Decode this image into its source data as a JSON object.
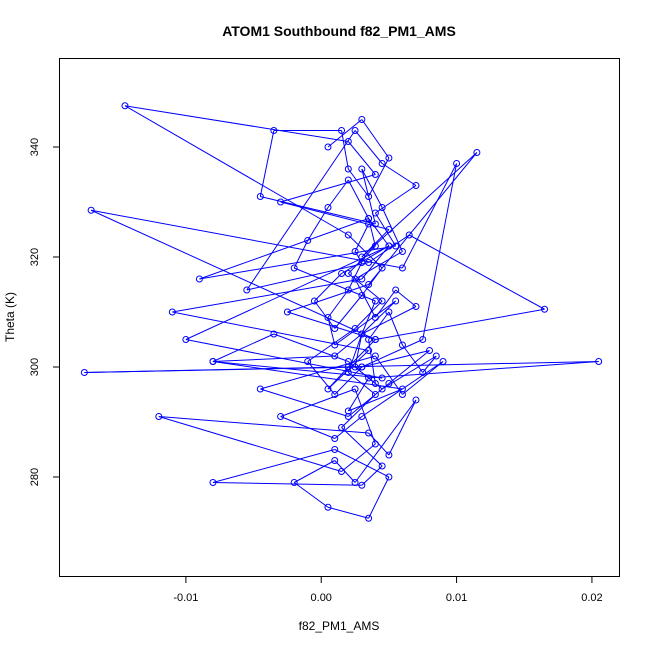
{
  "chart_data": {
    "type": "line",
    "title": "ATOM1 Southbound f82_PM1_AMS",
    "xlabel": "f82_PM1_AMS",
    "ylabel": "Theta (K)",
    "xlim": [
      -0.0193,
      0.022
    ],
    "ylim": [
      262,
      356
    ],
    "xticks": [
      -0.01,
      0.0,
      0.01,
      0.02
    ],
    "xtick_labels": [
      "-0.01",
      "0.00",
      "0.01",
      "0.02"
    ],
    "yticks": [
      280,
      300,
      320,
      340
    ],
    "ytick_labels": [
      "280",
      "300",
      "320",
      "340"
    ],
    "grid": false,
    "legend": "none",
    "line_color": "#0000ff",
    "marker": "open-circle",
    "series": [
      {
        "x": [
          0.0005,
          0.003,
          0.005,
          0.0035,
          0.002,
          0.0015,
          -0.0035,
          -0.0045,
          0.004,
          0.003,
          0.0045,
          0.006,
          0.0025,
          0.004,
          0.0055,
          0.007,
          0.003,
          0.001,
          -0.008,
          -0.0035,
          0.002,
          0.004,
          0.0035,
          0.005,
          0.006,
          0.0075,
          0.0085,
          0.0045,
          0.0025,
          0.003,
          0.004,
          -0.002,
          -0.001,
          0.0005,
          0.002,
          0.0035,
          0.005,
          0.0015,
          -0.0005,
          0.001,
          0.003,
          0.0045,
          0.002,
          -0.0145,
          0.002,
          0.004,
          -0.003,
          0.005,
          0.003,
          0.0115,
          0.0035,
          -0.0025,
          0.004,
          -0.017,
          0.006,
          0.01,
          0.0075,
          0.003,
          0.001,
          -0.001,
          0.0025,
          0.0045,
          0.002,
          0.004,
          0.0035,
          -0.009,
          0.0055,
          0.004,
          0.007,
          0.0045,
          0.0025,
          -0.0055,
          0.0035,
          0.0065,
          0.0165,
          0.004,
          0.002,
          0.0005,
          0.0035,
          -0.011,
          0.003,
          0.005,
          -0.01,
          0.0045,
          -0.008,
          0.006,
          0.002,
          0.0035,
          0.0205,
          -0.0175,
          0.003,
          0.008,
          0.005,
          0.002,
          -0.0045,
          0.004,
          0.006,
          0.009,
          0.003,
          0.001,
          -0.003,
          0.0025,
          0.004,
          0.0015,
          -0.012,
          0.0035,
          0.005,
          0.007,
          0.0025,
          0.001,
          -0.002,
          0.0005,
          0.0035,
          0.005,
          0.001,
          -0.008,
          0.003,
          0.0045,
          0.0015,
          0.004,
          0.002,
          0.003,
          0.0055,
          0.001,
          0.0005,
          0.002,
          0.003,
          0.0025,
          0.0035
        ],
        "y": [
          340.0,
          345.0,
          338.0,
          331.0,
          336.0,
          343.0,
          343.0,
          331.0,
          326.0,
          336.0,
          329.0,
          321.0,
          316.0,
          309.0,
          314.0,
          311.0,
          306.0,
          302.0,
          301.0,
          306.0,
          301.0,
          297.0,
          305.0,
          310.0,
          304.0,
          299.0,
          302.0,
          296.0,
          300.0,
          306.0,
          312.0,
          318.0,
          323.0,
          329.0,
          334.0,
          327.0,
          322.0,
          317.0,
          312.0,
          307.0,
          313.0,
          318.0,
          324.0,
          347.5,
          341.0,
          335.0,
          330.0,
          325.0,
          320.0,
          339.0,
          315.0,
          310.0,
          305.0,
          328.5,
          318.0,
          337.0,
          305.0,
          300.0,
          295.0,
          301.0,
          307.0,
          312.0,
          317.0,
          322.0,
          327.0,
          316.0,
          322.0,
          328.0,
          333.0,
          337.0,
          343.0,
          314.0,
          319.0,
          324.0,
          310.5,
          305.0,
          300.0,
          296.0,
          303.0,
          310.0,
          316.0,
          322.0,
          305.0,
          298.0,
          301.0,
          296.0,
          292.0,
          298.0,
          301.0,
          299.0,
          300.0,
          303.0,
          297.0,
          291.0,
          296.0,
          302.0,
          295.0,
          301.0,
          291.0,
          287.0,
          291.0,
          296.0,
          286.0,
          281.0,
          291.0,
          288.0,
          284.0,
          294.0,
          279.0,
          283.0,
          279.0,
          274.5,
          272.5,
          280.0,
          285.0,
          279.0,
          278.5,
          282.0,
          289.0,
          295.0,
          299.0,
          306.0,
          312.0,
          304.0,
          309.0,
          314.0,
          319.0,
          321.0,
          326.0
        ]
      }
    ]
  }
}
